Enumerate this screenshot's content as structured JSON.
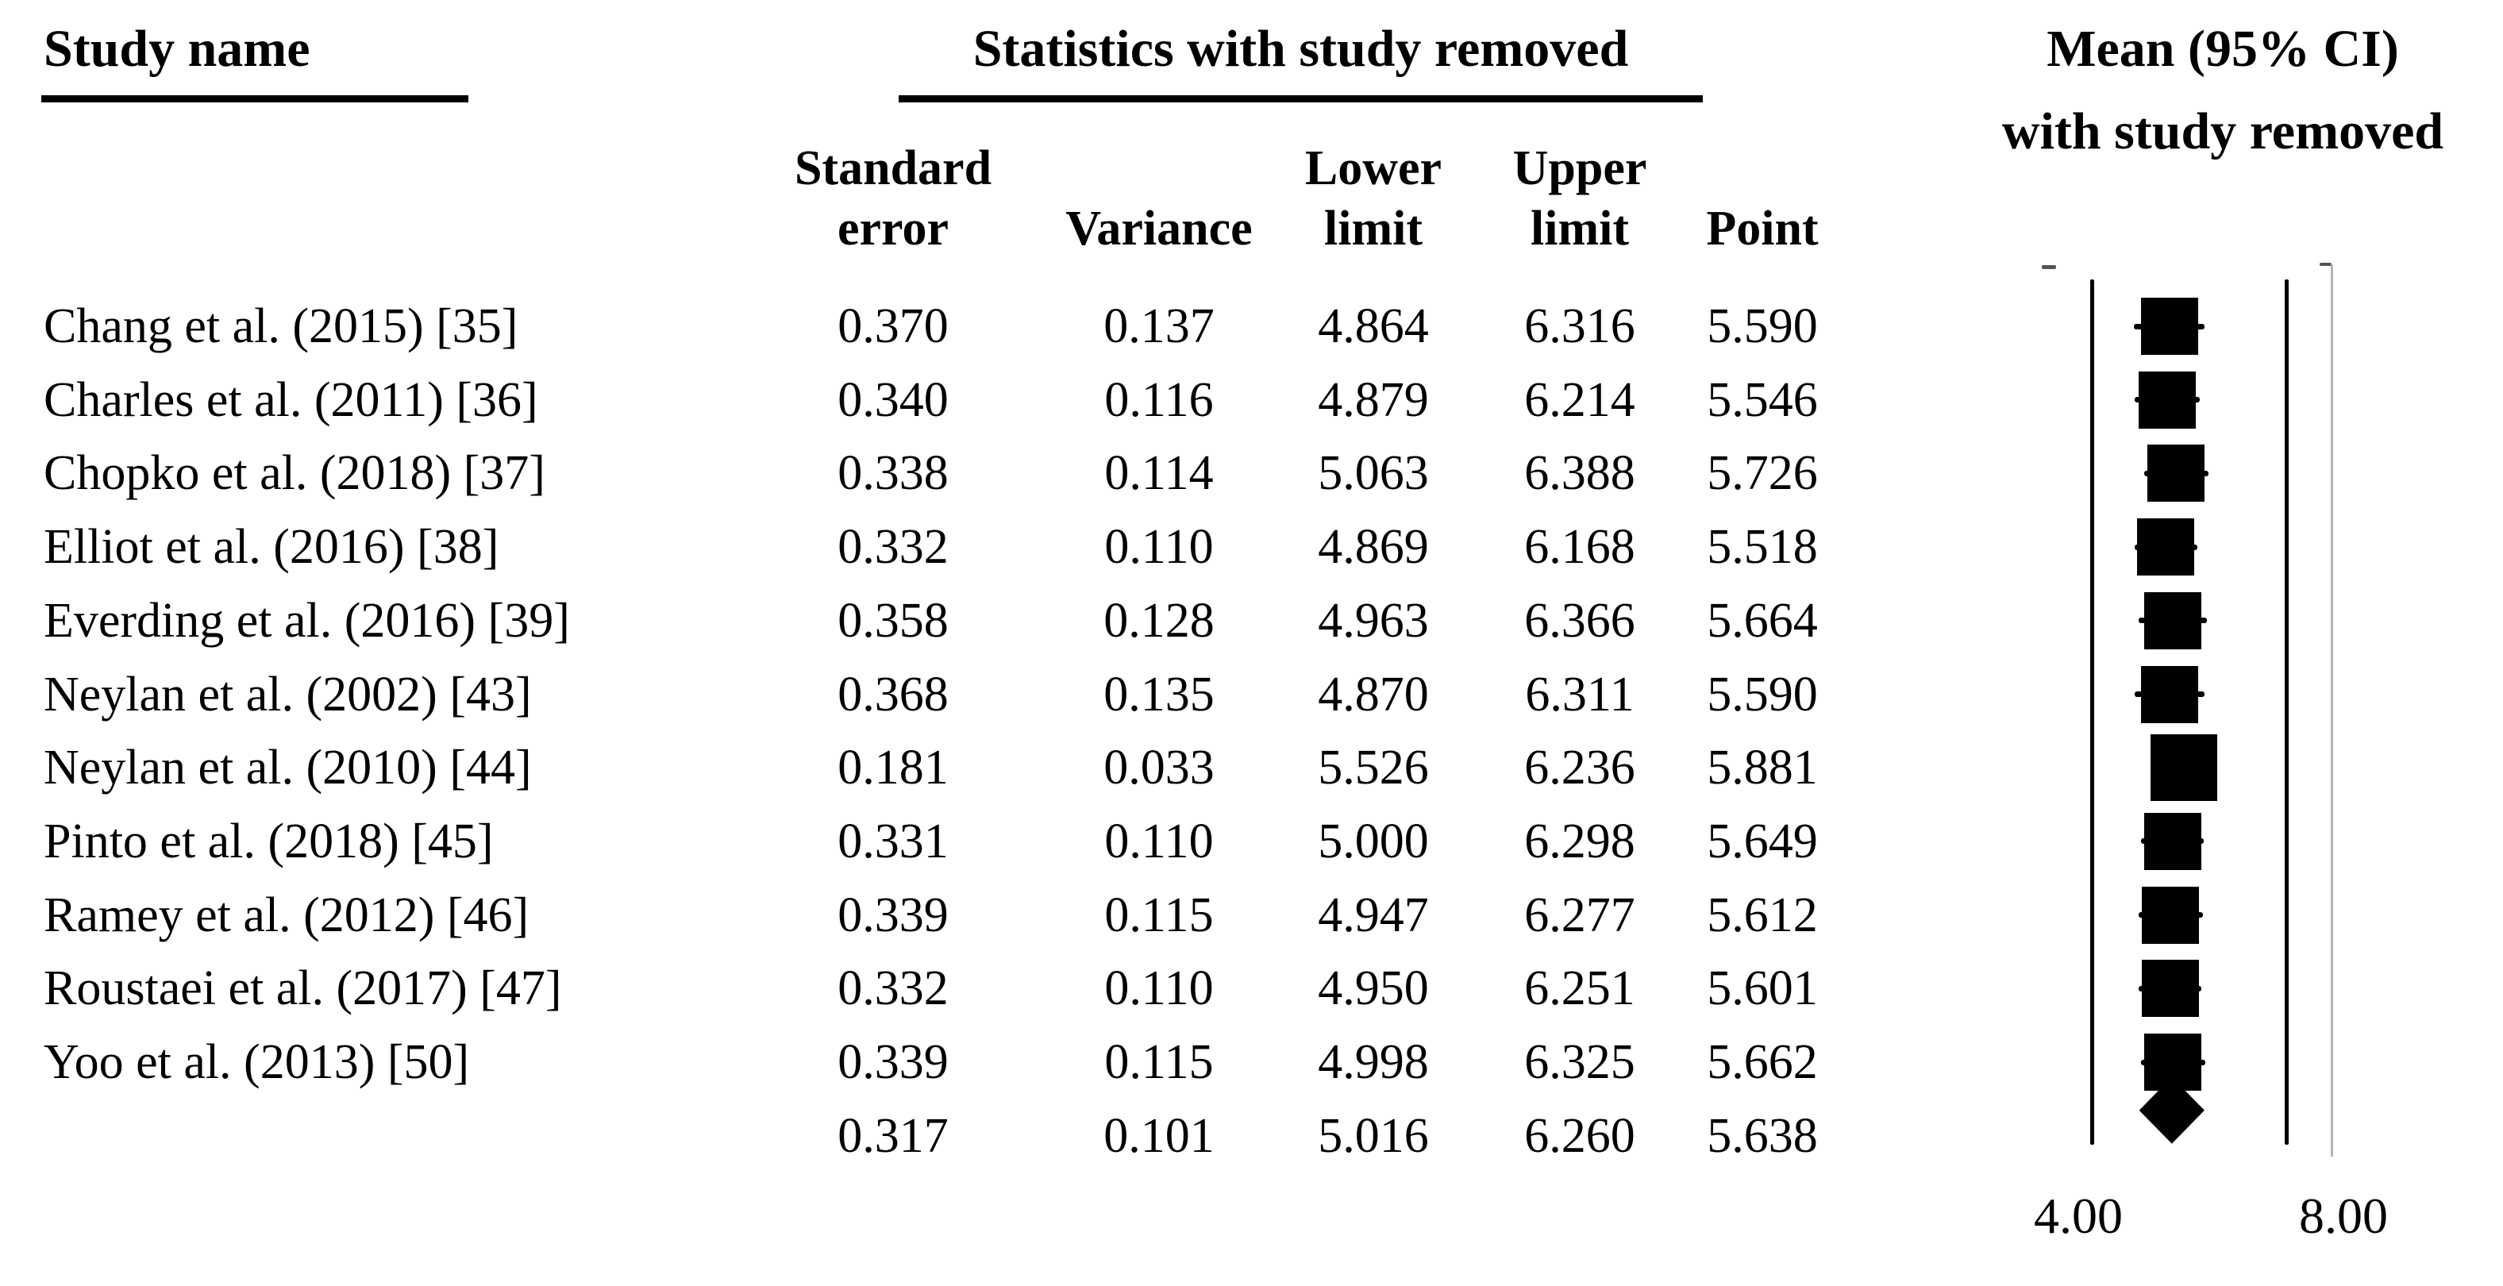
{
  "figure": {
    "background_color": "#ffffff",
    "text_color": "#000000",
    "study_col_header": "Study name",
    "stats_group_header": "Statistics with study removed",
    "plot_header_line1": "Mean (95% CI)",
    "plot_header_line2": "with study removed",
    "sub_columns": [
      {
        "top": "Standard",
        "bottom": "error"
      },
      {
        "top": "",
        "bottom": "Variance"
      },
      {
        "top": "Lower",
        "bottom": "limit"
      },
      {
        "top": "Upper",
        "bottom": "limit"
      },
      {
        "top": "",
        "bottom": "Point"
      }
    ],
    "axis_tick_labels": [
      "4.00",
      "8.00"
    ]
  },
  "chart_data": {
    "type": "scatter",
    "variant": "forest-plot-leave-one-out",
    "title": "Mean (95% CI) with study removed",
    "group_header": "Statistics with study removed",
    "columns": [
      "Standard error",
      "Variance",
      "Lower limit",
      "Upper limit",
      "Point"
    ],
    "x_axis": {
      "min": 4.0,
      "max": 8.0,
      "tick_labels": [
        "4.00",
        "8.00"
      ],
      "grid": false
    },
    "marker_color": "#000000",
    "studies": [
      {
        "name": "Chang et al. (2015) [35]",
        "standard_error": "0.370",
        "variance": "0.137",
        "lower_limit": "4.864",
        "upper_limit": "6.316",
        "point": "5.590",
        "marker": "square"
      },
      {
        "name": "Charles et al. (2011) [36]",
        "standard_error": "0.340",
        "variance": "0.116",
        "lower_limit": "4.879",
        "upper_limit": "6.214",
        "point": "5.546",
        "marker": "square"
      },
      {
        "name": "Chopko et al. (2018) [37]",
        "standard_error": "0.338",
        "variance": "0.114",
        "lower_limit": "5.063",
        "upper_limit": "6.388",
        "point": "5.726",
        "marker": "square"
      },
      {
        "name": "Elliot et al. (2016) [38]",
        "standard_error": "0.332",
        "variance": "0.110",
        "lower_limit": "4.869",
        "upper_limit": "6.168",
        "point": "5.518",
        "marker": "square"
      },
      {
        "name": "Everding et al. (2016) [39]",
        "standard_error": "0.358",
        "variance": "0.128",
        "lower_limit": "4.963",
        "upper_limit": "6.366",
        "point": "5.664",
        "marker": "square"
      },
      {
        "name": "Neylan et al. (2002) [43]",
        "standard_error": "0.368",
        "variance": "0.135",
        "lower_limit": "4.870",
        "upper_limit": "6.311",
        "point": "5.590",
        "marker": "square"
      },
      {
        "name": "Neylan et al. (2010) [44]",
        "standard_error": "0.181",
        "variance": "0.033",
        "lower_limit": "5.526",
        "upper_limit": "6.236",
        "point": "5.881",
        "marker": "square-large"
      },
      {
        "name": "Pinto et al. (2018) [45]",
        "standard_error": "0.331",
        "variance": "0.110",
        "lower_limit": "5.000",
        "upper_limit": "6.298",
        "point": "5.649",
        "marker": "square"
      },
      {
        "name": "Ramey et al. (2012) [46]",
        "standard_error": "0.339",
        "variance": "0.115",
        "lower_limit": "4.947",
        "upper_limit": "6.277",
        "point": "5.612",
        "marker": "square"
      },
      {
        "name": "Roustaei et al. (2017) [47]",
        "standard_error": "0.332",
        "variance": "0.110",
        "lower_limit": "4.950",
        "upper_limit": "6.251",
        "point": "5.601",
        "marker": "square"
      },
      {
        "name": "Yoo et al. (2013) [50]",
        "standard_error": "0.339",
        "variance": "0.115",
        "lower_limit": "4.998",
        "upper_limit": "6.325",
        "point": "5.662",
        "marker": "square"
      }
    ],
    "pooled": {
      "name": "",
      "standard_error": "0.317",
      "variance": "0.101",
      "lower_limit": "5.016",
      "upper_limit": "6.260",
      "point": "5.638",
      "marker": "diamond"
    }
  }
}
